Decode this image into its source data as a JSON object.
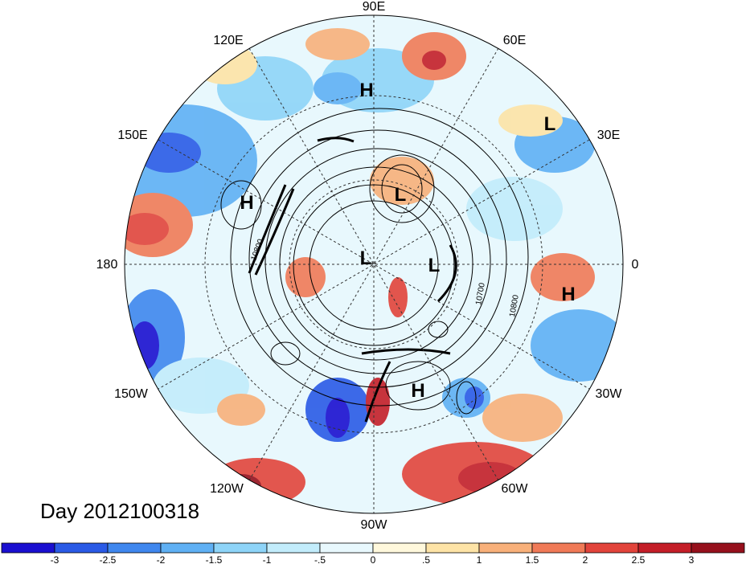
{
  "title": "Day 2012100318",
  "projection": "polar stereographic, northern hemisphere",
  "longitude_labels": [
    "90E",
    "60E",
    "30E",
    "0",
    "30W",
    "60W",
    "90W",
    "120W",
    "150W",
    "180",
    "150E",
    "120E"
  ],
  "pressure_systems": [
    {
      "type": "H",
      "region": "Siberia"
    },
    {
      "type": "L",
      "region": "Western Russia"
    },
    {
      "type": "H",
      "region": "Western Pacific"
    },
    {
      "type": "L",
      "region": "Central Siberia"
    },
    {
      "type": "L",
      "region": "Arctic Ocean"
    },
    {
      "type": "L",
      "region": "Greenland Sea"
    },
    {
      "type": "H",
      "region": "Eastern Atlantic"
    },
    {
      "type": "H",
      "region": "Western Atlantic"
    }
  ],
  "contour_labels": [
    "10800",
    "10700",
    "10800"
  ],
  "colorbar": {
    "ticks": [
      "-3",
      "-2.5",
      "-2",
      "-1.5",
      "-1",
      "-.5",
      "0",
      ".5",
      "1",
      "1.5",
      "2",
      "2.5",
      "3"
    ],
    "colors": [
      "#1a0fd0",
      "#2a5ae6",
      "#3f87ee",
      "#5fb0f4",
      "#8ed4f8",
      "#c2ecfb",
      "#e8f8fd",
      "#fff8dc",
      "#fde3a6",
      "#f8b07a",
      "#f07a57",
      "#e2443b",
      "#c41e28",
      "#96101c"
    ]
  },
  "colors": {
    "ocean_neutral": "#e8f8fd",
    "contour": "#000000",
    "dashed_grid": "#333333"
  }
}
